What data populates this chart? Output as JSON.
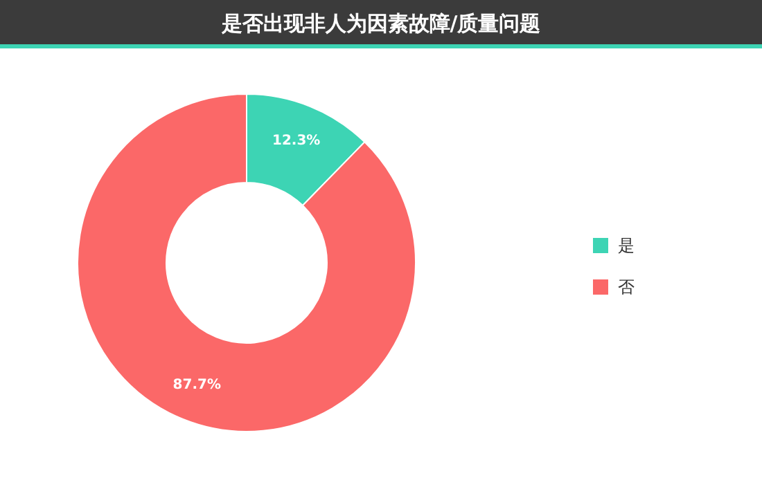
{
  "chart_data": {
    "type": "donut",
    "title": "是否出现非人为因素故障/质量问题",
    "categories": [
      "是",
      "否"
    ],
    "values": [
      12.3,
      87.7
    ],
    "colors": [
      "#3dd4b4",
      "#fb6868"
    ],
    "value_labels": [
      "12.3%",
      "87.7%"
    ],
    "legend": "right"
  }
}
